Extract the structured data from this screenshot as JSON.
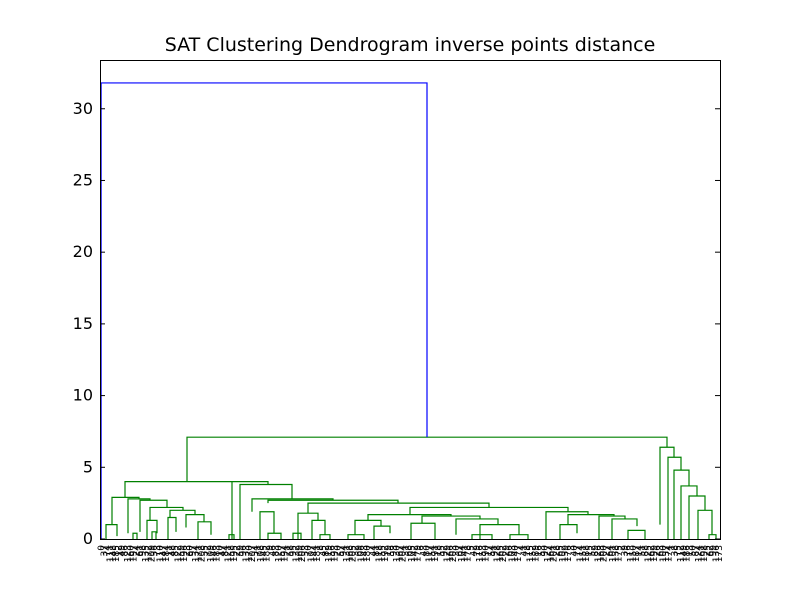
{
  "title": "SAT Clustering Dendrogram inverse points distance",
  "chart_data": {
    "type": "dendrogram",
    "title": "SAT Clustering Dendrogram inverse points distance",
    "xlabel": "",
    "ylabel": "",
    "ylim": [
      0,
      33.4
    ],
    "yticks": [
      0,
      5,
      10,
      15,
      20,
      25,
      30
    ],
    "grid": false,
    "legend": "none",
    "colors": {
      "root_link": "#0000ff",
      "cluster_link": "#008000",
      "axes": "#000000"
    },
    "root_link": {
      "left_child_height": 0,
      "right_child_height": 7.1,
      "merge_height": 31.8
    },
    "main_cluster": {
      "merge_height": 7.1,
      "left_group_height": 4.0,
      "right_group_height": 6.4
    },
    "leaf_label_note": "leaf labels are dense overlapping integer indices rendered vertically",
    "leaf_count": 210
  }
}
